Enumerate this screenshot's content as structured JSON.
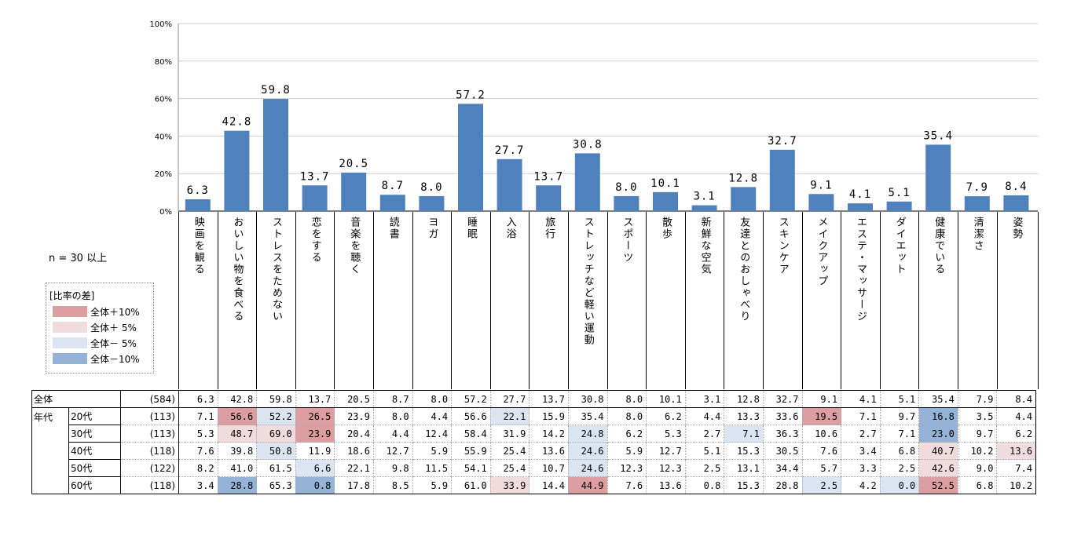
{
  "chart_data": {
    "type": "bar",
    "categories": [
      "映画を観る",
      "おいしい物を食べる",
      "ストレスをためない",
      "恋をする",
      "音楽を聴く",
      "読書",
      "ヨガ",
      "睡眠",
      "入浴",
      "旅行",
      "ストレッチなど軽い運動",
      "スポーツ",
      "散歩",
      "新鮮な空気",
      "友達とのおしゃべり",
      "スキンケア",
      "メイクアップ",
      "エステ・マッサージ",
      "ダイエット",
      "健康でいる",
      "清潔さ",
      "姿勢"
    ],
    "values": [
      6.3,
      42.8,
      59.8,
      13.7,
      20.5,
      8.7,
      8.0,
      57.2,
      27.7,
      13.7,
      30.8,
      8.0,
      10.1,
      3.1,
      12.8,
      32.7,
      9.1,
      4.1,
      5.1,
      35.4,
      7.9,
      8.4
    ],
    "value_labels": [
      "6.3",
      "42.8",
      "59.8",
      "13.7",
      "20.5",
      "8.7",
      "8.0",
      "57.2",
      "27.7",
      "13.7",
      "30.8",
      "8.0",
      "10.1",
      "3.1",
      "12.8",
      "32.7",
      "9.1",
      "4.1",
      "5.1",
      "35.4",
      "7.9",
      "8.4"
    ],
    "yticks": [
      "100%",
      "80%",
      "60%",
      "40%",
      "20%",
      "0%"
    ],
    "ylim": [
      0,
      100
    ],
    "bar_color": "#4f81bd",
    "grid": true
  },
  "note": "n = 30 以上",
  "legend": {
    "title": "[比率の差]",
    "items": [
      {
        "label": "全体＋10%",
        "color": "#dc9ea0"
      },
      {
        "label": "全体＋ 5%",
        "color": "#f1dcdd"
      },
      {
        "label": "全体－ 5%",
        "color": "#dbe5f1"
      },
      {
        "label": "全体－10%",
        "color": "#95b3d7"
      }
    ]
  },
  "table": {
    "group_label": "年代",
    "rows": [
      {
        "label": "全体",
        "n": "(584)",
        "values": [
          "6.3",
          "42.8",
          "59.8",
          "13.7",
          "20.5",
          "8.7",
          "8.0",
          "57.2",
          "27.7",
          "13.7",
          "30.8",
          "8.0",
          "10.1",
          "3.1",
          "12.8",
          "32.7",
          "9.1",
          "4.1",
          "5.1",
          "35.4",
          "7.9",
          "8.4"
        ],
        "hl": [
          "",
          "",
          "",
          "",
          "",
          "",
          "",
          "",
          "",
          "",
          "",
          "",
          "",
          "",
          "",
          "",
          "",
          "",
          "",
          "",
          "",
          ""
        ]
      },
      {
        "label": "20代",
        "n": "(113)",
        "values": [
          "7.1",
          "56.6",
          "52.2",
          "26.5",
          "23.9",
          "8.0",
          "4.4",
          "56.6",
          "22.1",
          "15.9",
          "35.4",
          "8.0",
          "6.2",
          "4.4",
          "13.3",
          "33.6",
          "19.5",
          "7.1",
          "9.7",
          "16.8",
          "3.5",
          "4.4"
        ],
        "hl": [
          "",
          "h1",
          "l1",
          "h1",
          "",
          "",
          "",
          "",
          "l1",
          "",
          "",
          "",
          "",
          "",
          "",
          "",
          "h1",
          "",
          "",
          "l2",
          "",
          ""
        ]
      },
      {
        "label": "30代",
        "n": "(113)",
        "values": [
          "5.3",
          "48.7",
          "69.0",
          "23.9",
          "20.4",
          "4.4",
          "12.4",
          "58.4",
          "31.9",
          "14.2",
          "24.8",
          "6.2",
          "5.3",
          "2.7",
          "7.1",
          "36.3",
          "10.6",
          "2.7",
          "7.1",
          "23.0",
          "9.7",
          "6.2"
        ],
        "hl": [
          "",
          "h2",
          "h2",
          "h1",
          "",
          "",
          "",
          "",
          "",
          "",
          "l1",
          "",
          "",
          "",
          "l1",
          "",
          "",
          "",
          "",
          "l2",
          "",
          ""
        ]
      },
      {
        "label": "40代",
        "n": "(118)",
        "values": [
          "7.6",
          "39.8",
          "50.8",
          "11.9",
          "18.6",
          "12.7",
          "5.9",
          "55.9",
          "25.4",
          "13.6",
          "24.6",
          "5.9",
          "12.7",
          "5.1",
          "15.3",
          "30.5",
          "7.6",
          "3.4",
          "6.8",
          "40.7",
          "10.2",
          "13.6"
        ],
        "hl": [
          "",
          "",
          "l1",
          "",
          "",
          "",
          "",
          "",
          "",
          "",
          "l1",
          "",
          "",
          "",
          "",
          "",
          "",
          "",
          "",
          "h2",
          "",
          "h2"
        ]
      },
      {
        "label": "50代",
        "n": "(122)",
        "values": [
          "8.2",
          "41.0",
          "61.5",
          "6.6",
          "22.1",
          "9.8",
          "11.5",
          "54.1",
          "25.4",
          "10.7",
          "24.6",
          "12.3",
          "12.3",
          "2.5",
          "13.1",
          "34.4",
          "5.7",
          "3.3",
          "2.5",
          "42.6",
          "9.0",
          "7.4"
        ],
        "hl": [
          "",
          "",
          "",
          "l1",
          "",
          "",
          "",
          "",
          "",
          "",
          "l1",
          "",
          "",
          "",
          "",
          "",
          "",
          "",
          "",
          "h2",
          "",
          ""
        ]
      },
      {
        "label": "60代",
        "n": "(118)",
        "values": [
          "3.4",
          "28.8",
          "65.3",
          "0.8",
          "17.8",
          "8.5",
          "5.9",
          "61.0",
          "33.9",
          "14.4",
          "44.9",
          "7.6",
          "13.6",
          "0.8",
          "15.3",
          "28.8",
          "2.5",
          "4.2",
          "0.0",
          "52.5",
          "6.8",
          "10.2"
        ],
        "hl": [
          "",
          "l2",
          "",
          "l2",
          "",
          "",
          "",
          "",
          "h2",
          "",
          "h1",
          "",
          "",
          "",
          "",
          "",
          "l1",
          "",
          "l1",
          "h1",
          "",
          ""
        ]
      }
    ]
  }
}
